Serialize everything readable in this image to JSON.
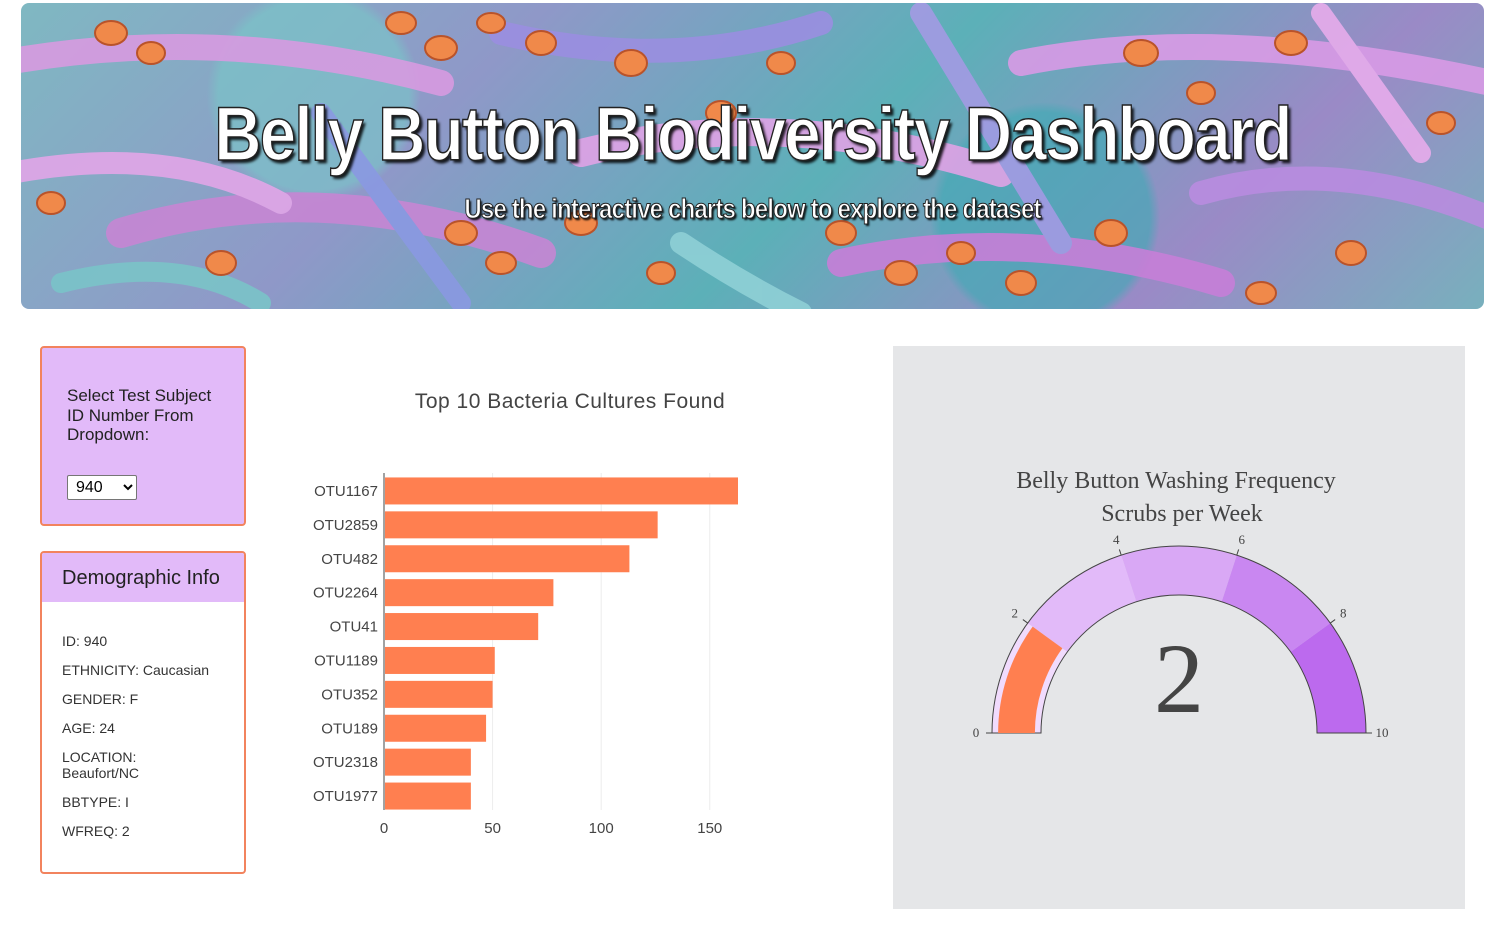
{
  "header": {
    "title": "Belly Button Biodiversity Dashboard",
    "subtitle": "Use the interactive charts below to explore the dataset"
  },
  "selector": {
    "label": "Select Test Subject ID Number From Dropdown:",
    "selected": "940",
    "options": [
      "940"
    ]
  },
  "demographics": {
    "title": "Demographic Info",
    "lines": [
      "ID: 940",
      "ETHNICITY: Caucasian",
      "GENDER: F",
      "AGE: 24",
      "LOCATION: Beaufort/NC",
      "BBTYPE: I",
      "WFREQ: 2"
    ]
  },
  "colors": {
    "accent_orange": "#ff7f50",
    "panel_lilac": "#e2baf9",
    "panel_border": "#f2835e",
    "gauge_bg": "#e5e6e8"
  },
  "chart_data": [
    {
      "type": "bar",
      "orientation": "horizontal",
      "title": "Top 10 Bacteria Cultures Found",
      "categories": [
        "OTU1167",
        "OTU2859",
        "OTU482",
        "OTU2264",
        "OTU41",
        "OTU1189",
        "OTU352",
        "OTU189",
        "OTU2318",
        "OTU1977"
      ],
      "values": [
        163,
        126,
        113,
        78,
        71,
        51,
        50,
        47,
        40,
        40
      ],
      "xlim": [
        0,
        163
      ],
      "xticks": [
        0,
        50,
        100,
        150
      ],
      "grid": true,
      "color": "#ff7f50"
    },
    {
      "type": "gauge",
      "title": "Belly Button Washing Frequency",
      "subtitle": "Scrubs per Week",
      "value": 2,
      "range": [
        0,
        10
      ],
      "ticks": [
        0,
        2,
        4,
        6,
        8,
        10
      ],
      "steps": [
        {
          "range": [
            0,
            2
          ],
          "color": "#f1dbfd"
        },
        {
          "range": [
            2,
            4
          ],
          "color": "#e2baf9"
        },
        {
          "range": [
            4,
            6
          ],
          "color": "#d9a8f5"
        },
        {
          "range": [
            6,
            8
          ],
          "color": "#c987f1"
        },
        {
          "range": [
            8,
            10
          ],
          "color": "#bc6aee"
        }
      ],
      "bar_color": "#ff7f50"
    }
  ]
}
